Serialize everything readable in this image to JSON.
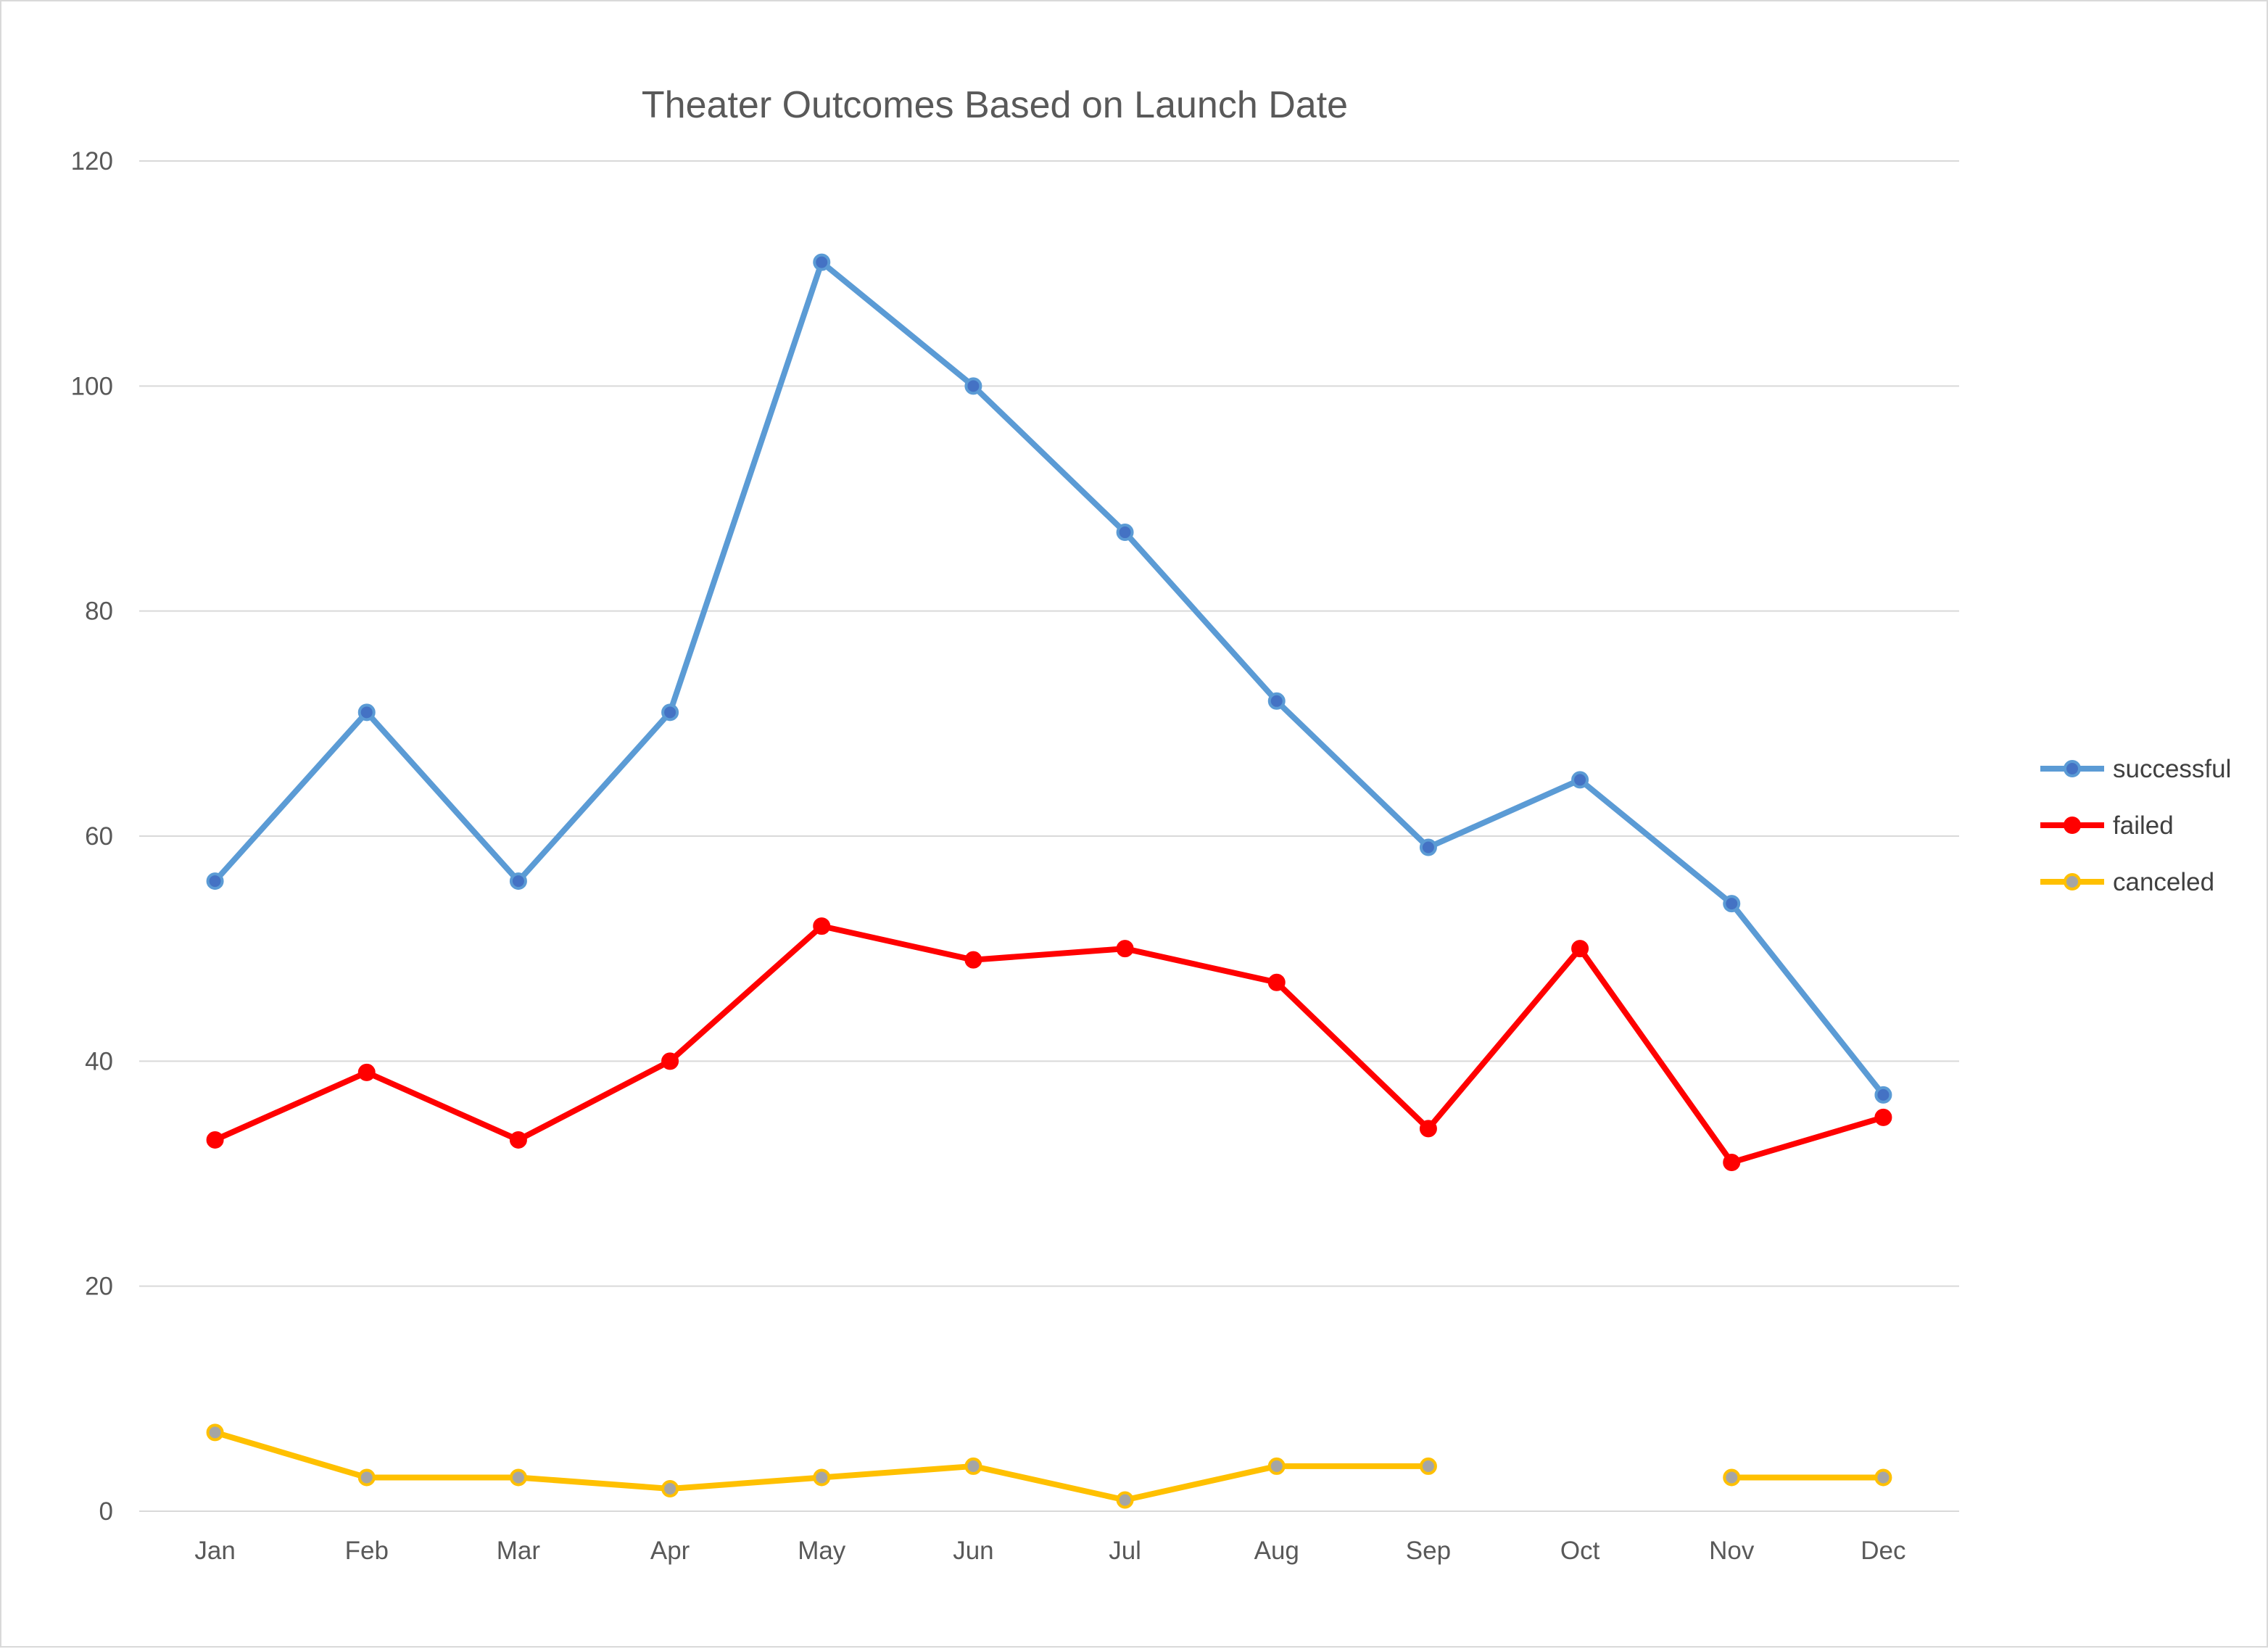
{
  "chart_data": {
    "type": "line",
    "title": "Theater Outcomes Based on Launch Date",
    "xlabel": "",
    "ylabel": "",
    "categories": [
      "Jan",
      "Feb",
      "Mar",
      "Apr",
      "May",
      "Jun",
      "Jul",
      "Aug",
      "Sep",
      "Oct",
      "Nov",
      "Dec"
    ],
    "ylim": [
      0,
      120
    ],
    "yticks": [
      0,
      20,
      40,
      60,
      80,
      100,
      120
    ],
    "grid": true,
    "legend_position": "right",
    "series": [
      {
        "name": "successful",
        "color": "#5B9BD5",
        "marker_color": "#4472C4",
        "values": [
          56,
          71,
          56,
          71,
          111,
          100,
          87,
          72,
          59,
          65,
          54,
          37
        ]
      },
      {
        "name": "failed",
        "color": "#FF0000",
        "marker_color": "#FF0000",
        "values": [
          33,
          39,
          33,
          40,
          52,
          49,
          50,
          47,
          34,
          50,
          31,
          35
        ]
      },
      {
        "name": "canceled",
        "color": "#FFC000",
        "marker_color": "#A5A5A5",
        "values": [
          7,
          3,
          3,
          2,
          3,
          4,
          1,
          4,
          4,
          null,
          3,
          3
        ]
      }
    ]
  }
}
